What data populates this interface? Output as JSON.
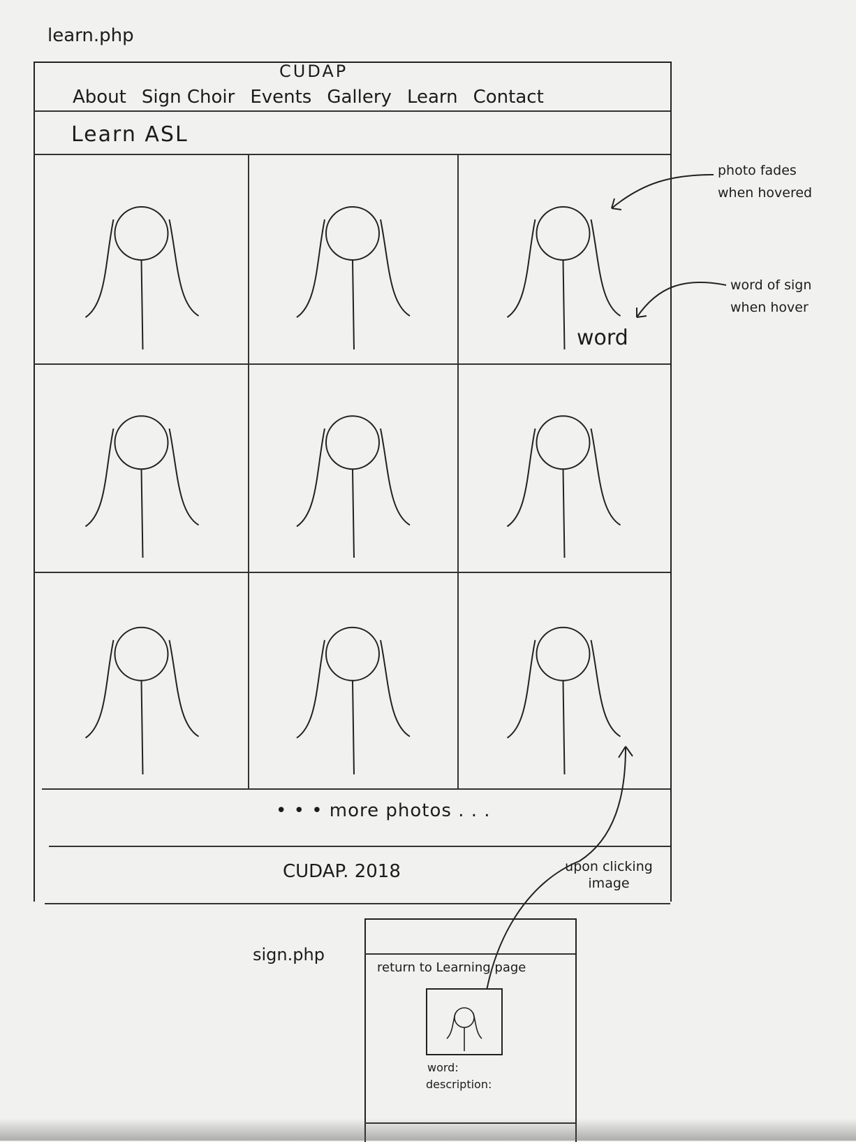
{
  "learn_page": {
    "file_label": "learn.php",
    "site_title": "CUDAP",
    "nav": [
      "About",
      "Sign Choir",
      "Events",
      "Gallery",
      "Learn",
      "Contact"
    ],
    "heading": "Learn ASL",
    "hover_word": "word",
    "more_photos": "• • •  more photos . . .",
    "footer": "CUDAP. 2018"
  },
  "annotations": {
    "fade": "photo fades when hovered",
    "word": "word of sign when hover",
    "click": "upon clicking image"
  },
  "sign_page": {
    "file_label": "sign.php",
    "return_link": "return to Learning page",
    "word_label": "word:",
    "description_label": "description:"
  }
}
